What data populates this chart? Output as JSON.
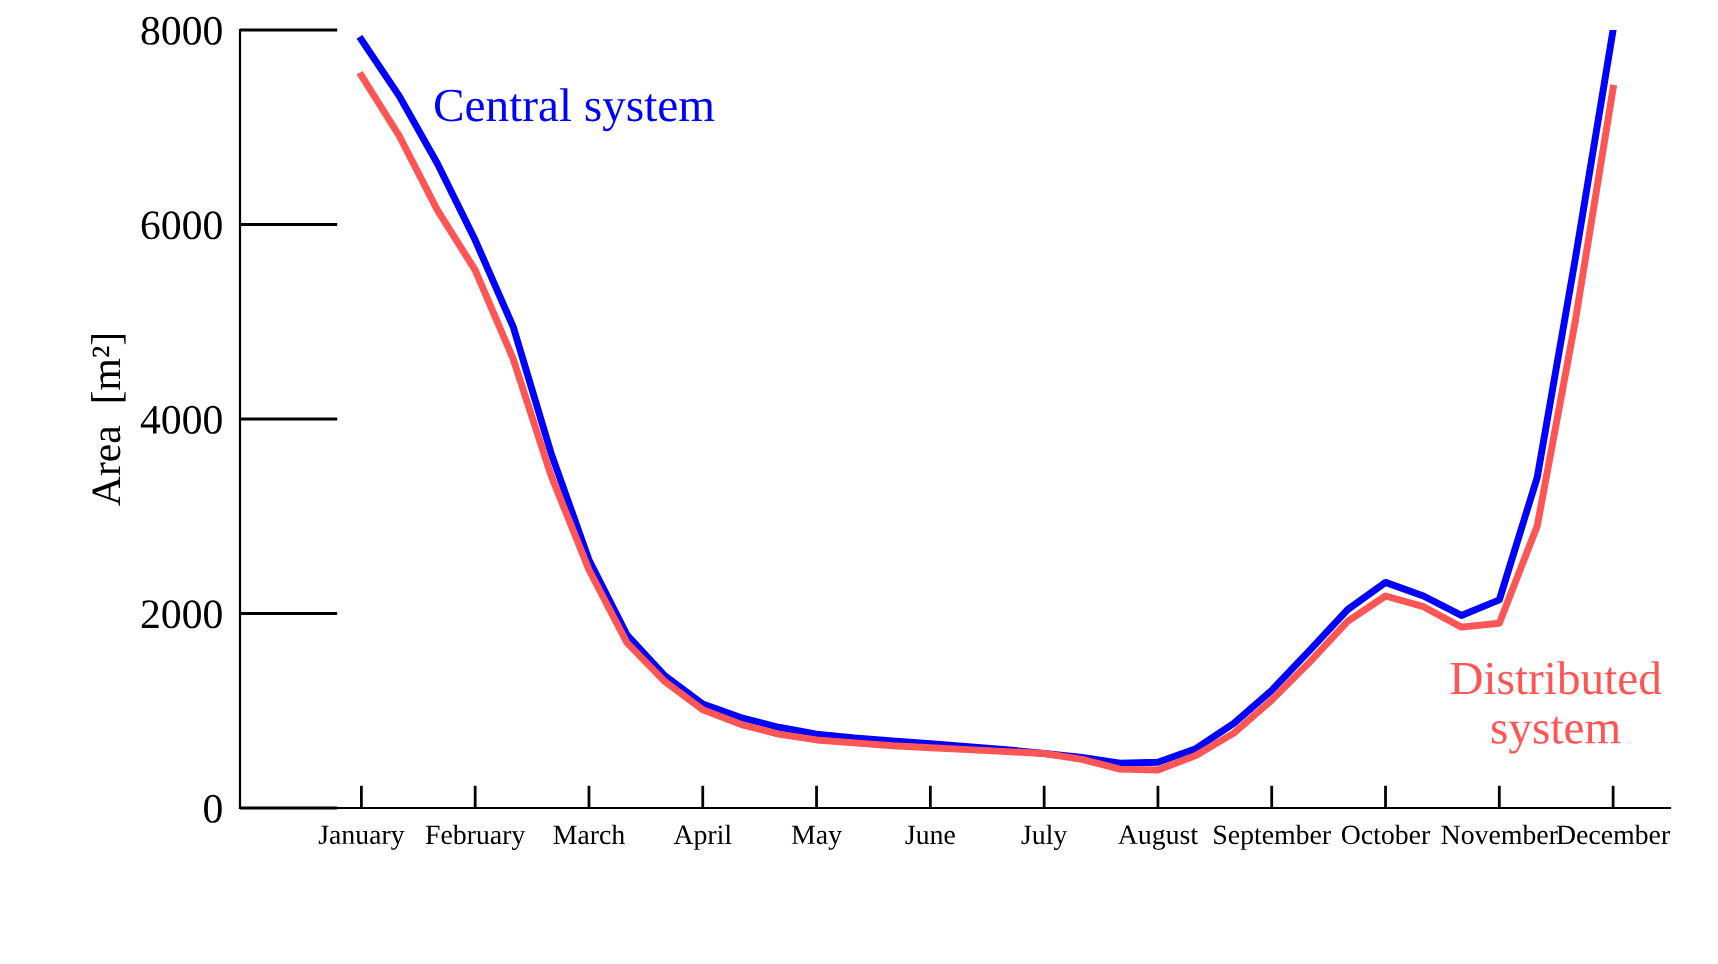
{
  "chart_data": {
    "type": "line",
    "ylabel": "Area  [m²]",
    "categories": [
      "January",
      null,
      null,
      "February",
      null,
      null,
      "March",
      null,
      null,
      "April",
      null,
      null,
      "May",
      null,
      null,
      "June",
      null,
      null,
      "July",
      null,
      null,
      "August",
      null,
      null,
      "September",
      null,
      null,
      "October",
      null,
      null,
      "November",
      null,
      null,
      "December"
    ],
    "ylim": [
      0,
      8000
    ],
    "yticks": [
      0,
      2000,
      4000,
      6000,
      8000
    ],
    "grid": false,
    "legend": false,
    "marker": "none",
    "line_style": "solid",
    "series": [
      {
        "name": "Central system",
        "color": "#0000ff",
        "values": [
          7900,
          7320,
          6630,
          5840,
          4950,
          3650,
          2550,
          1780,
          1360,
          1070,
          930,
          830,
          760,
          720,
          690,
          660,
          630,
          600,
          560,
          520,
          460,
          470,
          610,
          870,
          1210,
          1620,
          2040,
          2320,
          2180,
          1980,
          2140,
          3400,
          5640,
          8000
        ]
      },
      {
        "name": "Distributed system",
        "color": "#ff5555",
        "values": [
          7530,
          6910,
          6150,
          5530,
          4620,
          3420,
          2450,
          1700,
          1300,
          1010,
          860,
          760,
          700,
          670,
          640,
          620,
          600,
          580,
          560,
          500,
          400,
          390,
          540,
          770,
          1110,
          1500,
          1920,
          2180,
          2070,
          1860,
          1900,
          2900,
          5000,
          7400
        ]
      }
    ]
  }
}
